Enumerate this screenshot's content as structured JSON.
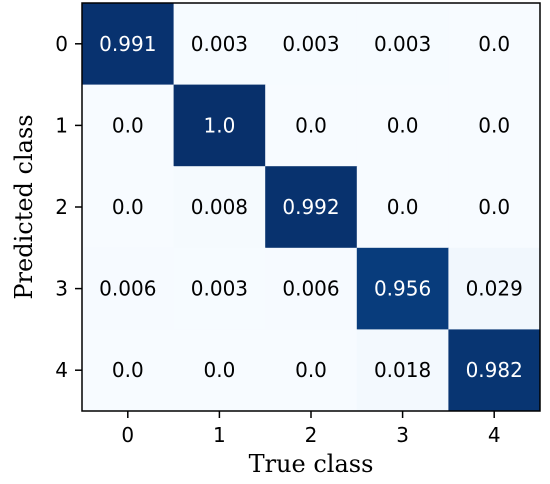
{
  "chart_data": {
    "type": "heatmap",
    "xlabel": "True class",
    "ylabel": "Predicted class",
    "x_categories": [
      "0",
      "1",
      "2",
      "3",
      "4"
    ],
    "y_categories": [
      "0",
      "1",
      "2",
      "3",
      "4"
    ],
    "values": [
      [
        0.991,
        0.003,
        0.003,
        0.003,
        0.0
      ],
      [
        0.0,
        1.0,
        0.0,
        0.0,
        0.0
      ],
      [
        0.0,
        0.008,
        0.992,
        0.0,
        0.0
      ],
      [
        0.006,
        0.003,
        0.006,
        0.956,
        0.029
      ],
      [
        0.0,
        0.0,
        0.0,
        0.018,
        0.982
      ]
    ],
    "value_labels": [
      [
        "0.991",
        "0.003",
        "0.003",
        "0.003",
        "0.0"
      ],
      [
        "0.0",
        "1.0",
        "0.0",
        "0.0",
        "0.0"
      ],
      [
        "0.0",
        "0.008",
        "0.992",
        "0.0",
        "0.0"
      ],
      [
        "0.006",
        "0.003",
        "0.006",
        "0.956",
        "0.029"
      ],
      [
        "0.0",
        "0.0",
        "0.0",
        "0.018",
        "0.982"
      ]
    ],
    "colormap": "Blues",
    "color_low": "#f7fbff",
    "color_high": "#08306b",
    "value_range": [
      0,
      1
    ]
  }
}
